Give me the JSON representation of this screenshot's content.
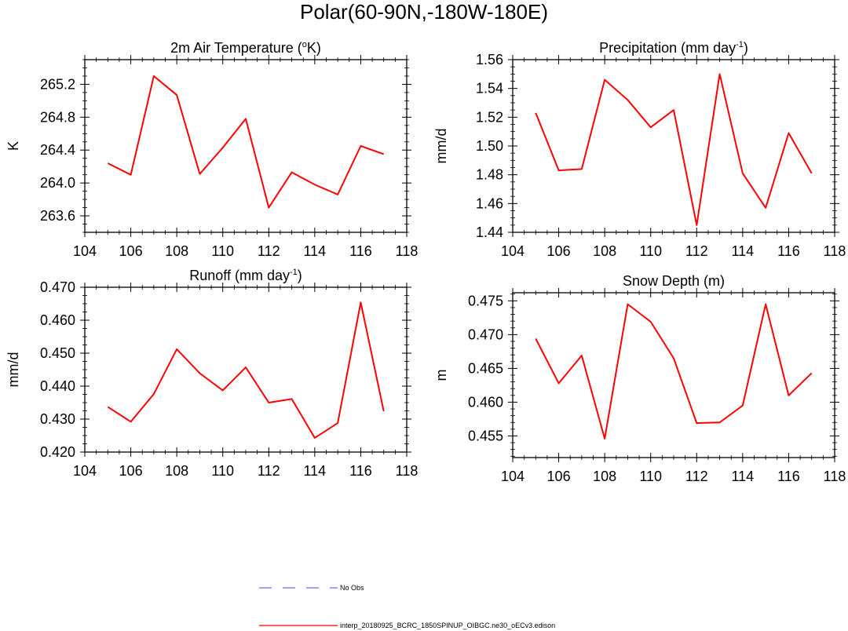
{
  "figure": {
    "title": "Polar(60-90N,-180W-180E)"
  },
  "chart_data": [
    {
      "id": "temp",
      "type": "line",
      "title_main": "2m Air Temperature (",
      "title_sup": "o",
      "title_tail": "K)",
      "ylabel": "K",
      "xlabel": "",
      "xlim": [
        104,
        118
      ],
      "ylim": [
        263.4,
        265.5
      ],
      "xticks": [
        104,
        106,
        108,
        110,
        112,
        114,
        116,
        118
      ],
      "xtick_labels": [
        "104",
        "106",
        "108",
        "110",
        "112",
        "114",
        "116",
        "118"
      ],
      "yticks": [
        263.6,
        264.0,
        264.4,
        264.8,
        265.2
      ],
      "ytick_labels": [
        "263.6",
        "264.0",
        "264.4",
        "264.8",
        "265.2"
      ],
      "yminor_step": 0.1,
      "x": [
        105,
        106,
        107,
        108,
        109,
        110,
        111,
        112,
        113,
        114,
        115,
        116,
        117
      ],
      "series": [
        {
          "name": "interp_20180925_BCRC_1850SPINUP_OIBGC.ne30_oECv3.edison",
          "color": "#ff0000",
          "values": [
            264.24,
            264.1,
            265.3,
            265.07,
            264.11,
            264.43,
            264.78,
            263.7,
            264.13,
            263.98,
            263.86,
            264.45,
            264.35
          ]
        }
      ]
    },
    {
      "id": "precip",
      "type": "line",
      "title_main": "Precipitation (mm day",
      "title_sup": "-1",
      "title_tail": ")",
      "ylabel": "mm/d",
      "xlabel": "",
      "xlim": [
        104,
        118
      ],
      "ylim": [
        1.44,
        1.56
      ],
      "xticks": [
        104,
        106,
        108,
        110,
        112,
        114,
        116,
        118
      ],
      "xtick_labels": [
        "104",
        "106",
        "108",
        "110",
        "112",
        "114",
        "116",
        "118"
      ],
      "yticks": [
        1.44,
        1.46,
        1.48,
        1.5,
        1.52,
        1.54,
        1.56
      ],
      "ytick_labels": [
        "1.44",
        "1.46",
        "1.48",
        "1.50",
        "1.52",
        "1.54",
        "1.56"
      ],
      "yminor_step": 0.005,
      "x": [
        105,
        106,
        107,
        108,
        109,
        110,
        111,
        112,
        113,
        114,
        115,
        116,
        117
      ],
      "series": [
        {
          "name": "interp_20180925_BCRC_1850SPINUP_OIBGC.ne30_oECv3.edison",
          "color": "#ff0000",
          "values": [
            1.523,
            1.483,
            1.484,
            1.546,
            1.532,
            1.513,
            1.525,
            1.445,
            1.55,
            1.481,
            1.457,
            1.509,
            1.481
          ]
        }
      ]
    },
    {
      "id": "runoff",
      "type": "line",
      "title_main": "Runoff (mm day",
      "title_sup": "-1",
      "title_tail": ")",
      "ylabel": "mm/d",
      "xlabel": "",
      "xlim": [
        104,
        118
      ],
      "ylim": [
        0.42,
        0.47
      ],
      "xticks": [
        104,
        106,
        108,
        110,
        112,
        114,
        116,
        118
      ],
      "xtick_labels": [
        "104",
        "106",
        "108",
        "110",
        "112",
        "114",
        "116",
        "118"
      ],
      "yticks": [
        0.42,
        0.43,
        0.44,
        0.45,
        0.46,
        0.47
      ],
      "ytick_labels": [
        "0.420",
        "0.430",
        "0.440",
        "0.450",
        "0.460",
        "0.470"
      ],
      "yminor_step": 0.0025,
      "x": [
        105,
        106,
        107,
        108,
        109,
        110,
        111,
        112,
        113,
        114,
        115,
        116,
        117
      ],
      "series": [
        {
          "name": "interp_20180925_BCRC_1850SPINUP_OIBGC.ne30_oECv3.edison",
          "color": "#ff0000",
          "values": [
            0.4337,
            0.4292,
            0.4376,
            0.4512,
            0.4439,
            0.4387,
            0.4457,
            0.435,
            0.4361,
            0.4243,
            0.4288,
            0.4654,
            0.4324
          ]
        }
      ]
    },
    {
      "id": "snow",
      "type": "line",
      "title_main": "Snow Depth (m)",
      "title_sup": "",
      "title_tail": "",
      "ylabel": "m",
      "xlabel": "",
      "xlim": [
        104,
        118
      ],
      "ylim": [
        0.4518,
        0.4762
      ],
      "xticks": [
        104,
        106,
        108,
        110,
        112,
        114,
        116,
        118
      ],
      "xtick_labels": [
        "104",
        "106",
        "108",
        "110",
        "112",
        "114",
        "116",
        "118"
      ],
      "yticks": [
        0.455,
        0.46,
        0.465,
        0.47,
        0.475
      ],
      "ytick_labels": [
        "0.455",
        "0.460",
        "0.465",
        "0.470",
        "0.475"
      ],
      "yminor_step": 0.001,
      "x": [
        105,
        106,
        107,
        108,
        109,
        110,
        111,
        112,
        113,
        114,
        115,
        116,
        117
      ],
      "series": [
        {
          "name": "interp_20180925_BCRC_1850SPINUP_OIBGC.ne30_oECv3.edison",
          "color": "#ff0000",
          "values": [
            0.4694,
            0.4628,
            0.4669,
            0.4546,
            0.4745,
            0.4719,
            0.4665,
            0.4569,
            0.457,
            0.4595,
            0.4745,
            0.461,
            0.4643
          ]
        }
      ]
    }
  ],
  "legend": {
    "position": "bottom-center",
    "items": [
      {
        "label": "No Obs",
        "color": "#6a6aff",
        "style": "dashed"
      },
      {
        "label": "interp_20180925_BCRC_1850SPINUP_OIBGC.ne30_oECv3.edison",
        "color": "#ff0000",
        "style": "solid"
      }
    ]
  }
}
